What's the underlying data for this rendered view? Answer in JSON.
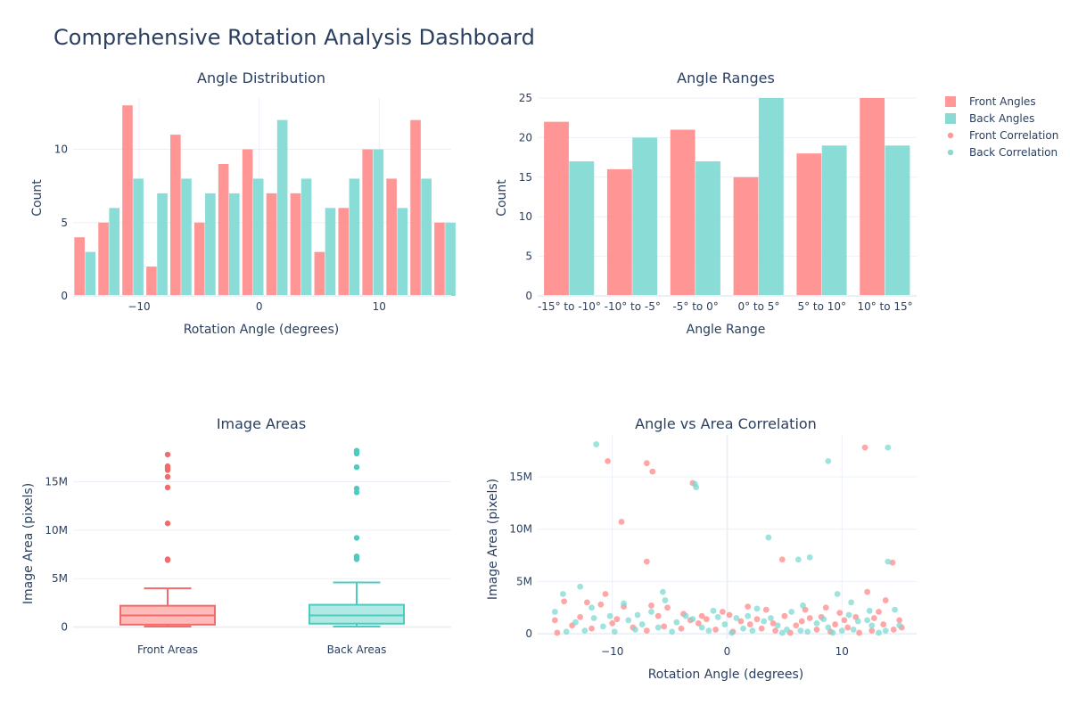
{
  "dashboard": {
    "title": "Comprehensive Rotation Analysis Dashboard"
  },
  "legend": {
    "items": [
      {
        "label": "Front Angles",
        "kind": "bar",
        "color": "#ff9896"
      },
      {
        "label": "Back Angles",
        "kind": "bar",
        "color": "#8ad9d2"
      },
      {
        "label": "Front Correlation",
        "kind": "dot",
        "color": "#ff9896"
      },
      {
        "label": "Back Correlation",
        "kind": "dot",
        "color": "#8ad9d2"
      }
    ]
  },
  "colors": {
    "front": "#ff8a8a",
    "back": "#7dd9d1",
    "front_dark": "#f26b6b",
    "back_dark": "#4ecbc1",
    "front_box_fill": "#ffb3b3",
    "back_box_fill": "#a8e8e2"
  },
  "chart_data": [
    {
      "id": "hist",
      "type": "bar",
      "title": "Angle Distribution",
      "xlabel": "Rotation Angle (degrees)",
      "ylabel": "Count",
      "xlim": [
        -15.5,
        16
      ],
      "ylim": [
        0,
        13.5
      ],
      "xticks": [
        {
          "v": -10,
          "t": "−10"
        },
        {
          "v": 0,
          "t": "0"
        },
        {
          "v": 10,
          "t": "10"
        }
      ],
      "yticks": [
        {
          "v": 0,
          "t": "0"
        },
        {
          "v": 5,
          "t": "5"
        },
        {
          "v": 10,
          "t": "10"
        }
      ],
      "bin_centers": [
        -14.5,
        -12.5,
        -10.5,
        -8.5,
        -6.5,
        -4.5,
        -2.5,
        -0.5,
        1.5,
        3.5,
        5.5,
        7.5,
        9.5,
        11.5,
        13.5,
        15.5
      ],
      "series": [
        {
          "name": "Front Angles",
          "values": [
            4,
            5,
            13,
            2,
            11,
            5,
            9,
            10,
            7,
            7,
            3,
            6,
            10,
            8,
            12,
            5
          ]
        },
        {
          "name": "Back Angles",
          "values": [
            3,
            6,
            8,
            7,
            8,
            7,
            7,
            8,
            12,
            8,
            6,
            8,
            10,
            6,
            8,
            5
          ]
        }
      ]
    },
    {
      "id": "ranges",
      "type": "bar",
      "title": "Angle Ranges",
      "xlabel": "Angle Range",
      "ylabel": "Count",
      "ylim": [
        0,
        25
      ],
      "yticks": [
        {
          "v": 0,
          "t": "0"
        },
        {
          "v": 5,
          "t": "5"
        },
        {
          "v": 10,
          "t": "10"
        },
        {
          "v": 15,
          "t": "15"
        },
        {
          "v": 20,
          "t": "20"
        },
        {
          "v": 25,
          "t": "25"
        }
      ],
      "categories": [
        "-15° to -10°",
        "-10° to -5°",
        "-5° to 0°",
        "0° to 5°",
        "5° to 10°",
        "10° to 15°"
      ],
      "series": [
        {
          "name": "Front Angles",
          "values": [
            22,
            16,
            21,
            15,
            18,
            25
          ]
        },
        {
          "name": "Back Angles",
          "values": [
            17,
            20,
            17,
            25,
            19,
            19
          ]
        }
      ]
    },
    {
      "id": "box",
      "type": "box",
      "title": "Image Areas",
      "xlabel": "",
      "ylabel": "Image Area (pixels)",
      "ylim": [
        -500000,
        19000000
      ],
      "yticks": [
        {
          "v": 0,
          "t": "0"
        },
        {
          "v": 5000000,
          "t": "5M"
        },
        {
          "v": 10000000,
          "t": "10M"
        },
        {
          "v": 15000000,
          "t": "15M"
        }
      ],
      "categories": [
        "Front Areas",
        "Back Areas"
      ],
      "boxes": [
        {
          "name": "Front Areas",
          "min": 50000,
          "q1": 250000,
          "median": 1200000,
          "q3": 2200000,
          "whisker_high": 4000000,
          "outliers": [
            6900000,
            7000000,
            10700000,
            14400000,
            15500000,
            16200000,
            16400000,
            16600000,
            17800000
          ]
        },
        {
          "name": "Back Areas",
          "min": 50000,
          "q1": 350000,
          "median": 1200000,
          "q3": 2300000,
          "whisker_high": 4600000,
          "outliers": [
            7000000,
            7200000,
            7300000,
            9200000,
            13900000,
            14300000,
            16500000,
            17900000,
            18100000,
            18200000
          ]
        }
      ]
    },
    {
      "id": "scatter",
      "type": "scatter",
      "title": "Angle vs Area Correlation",
      "xlabel": "Rotation Angle (degrees)",
      "ylabel": "Image Area (pixels)",
      "xlim": [
        -16.5,
        16.5
      ],
      "ylim": [
        -500000,
        19000000
      ],
      "xticks": [
        {
          "v": -10,
          "t": "−10"
        },
        {
          "v": 0,
          "t": "0"
        },
        {
          "v": 10,
          "t": "10"
        }
      ],
      "yticks": [
        {
          "v": 0,
          "t": "0"
        },
        {
          "v": 5000000,
          "t": "5M"
        },
        {
          "v": 10000000,
          "t": "10M"
        },
        {
          "v": 15000000,
          "t": "15M"
        }
      ],
      "series": [
        {
          "name": "Front Correlation",
          "points": [
            [
              -10.4,
              16500000
            ],
            [
              -7.0,
              16300000
            ],
            [
              -6.5,
              15500000
            ],
            [
              -3.0,
              14400000
            ],
            [
              -9.2,
              10700000
            ],
            [
              -7.0,
              6900000
            ],
            [
              4.8,
              7100000
            ],
            [
              12.0,
              17800000
            ],
            [
              14.4,
              6800000
            ],
            [
              12.2,
              4000000
            ],
            [
              13.8,
              3200000
            ],
            [
              -10.6,
              3800000
            ],
            [
              -14.2,
              3100000
            ],
            [
              -12.2,
              3000000
            ],
            [
              -11.0,
              2800000
            ],
            [
              -9.0,
              2600000
            ],
            [
              -6.6,
              2700000
            ],
            [
              -5.2,
              2500000
            ],
            [
              -3.8,
              1900000
            ],
            [
              -2.2,
              1700000
            ],
            [
              -0.4,
              2100000
            ],
            [
              1.8,
              2600000
            ],
            [
              3.4,
              2300000
            ],
            [
              5.0,
              1700000
            ],
            [
              6.8,
              2300000
            ],
            [
              8.6,
              2500000
            ],
            [
              9.8,
              2000000
            ],
            [
              11.2,
              1600000
            ],
            [
              13.2,
              2100000
            ],
            [
              15.0,
              1300000
            ],
            [
              -15.0,
              1300000
            ],
            [
              -13.5,
              800000
            ],
            [
              -11.8,
              500000
            ],
            [
              -10.0,
              1000000
            ],
            [
              -8.2,
              600000
            ],
            [
              -7.0,
              300000
            ],
            [
              -5.5,
              700000
            ],
            [
              -4.0,
              500000
            ],
            [
              -2.5,
              1000000
            ],
            [
              -1.0,
              400000
            ],
            [
              0.5,
              200000
            ],
            [
              2.0,
              900000
            ],
            [
              3.0,
              500000
            ],
            [
              4.2,
              300000
            ],
            [
              5.5,
              100000
            ],
            [
              6.5,
              1200000
            ],
            [
              7.8,
              400000
            ],
            [
              9.0,
              200000
            ],
            [
              10.5,
              600000
            ],
            [
              11.5,
              100000
            ],
            [
              12.6,
              300000
            ],
            [
              13.6,
              900000
            ],
            [
              14.5,
              400000
            ],
            [
              -14.8,
              100000
            ],
            [
              -12.8,
              1600000
            ],
            [
              -9.6,
              1400000
            ],
            [
              -6.0,
              1700000
            ],
            [
              -3.2,
              1300000
            ],
            [
              1.2,
              1200000
            ],
            [
              2.6,
              1400000
            ],
            [
              8.2,
              1600000
            ],
            [
              10.2,
              1300000
            ],
            [
              12.8,
              1500000
            ],
            [
              15.2,
              600000
            ],
            [
              -1.8,
              1400000
            ],
            [
              0.2,
              1800000
            ],
            [
              4.0,
              1000000
            ],
            [
              6.0,
              800000
            ],
            [
              7.2,
              1500000
            ],
            [
              9.4,
              900000
            ]
          ]
        },
        {
          "name": "Back Correlation",
          "points": [
            [
              -11.4,
              18100000
            ],
            [
              -2.8,
              14300000
            ],
            [
              -2.7,
              14000000
            ],
            [
              8.8,
              16500000
            ],
            [
              14.0,
              17800000
            ],
            [
              3.6,
              9200000
            ],
            [
              6.2,
              7100000
            ],
            [
              7.2,
              7300000
            ],
            [
              14.0,
              6900000
            ],
            [
              -14.3,
              3800000
            ],
            [
              -12.8,
              4500000
            ],
            [
              -5.6,
              4000000
            ],
            [
              -5.4,
              3200000
            ],
            [
              -9.0,
              2900000
            ],
            [
              -11.8,
              2500000
            ],
            [
              -6.6,
              2100000
            ],
            [
              -3.6,
              1700000
            ],
            [
              -1.2,
              2200000
            ],
            [
              0.8,
              1500000
            ],
            [
              2.6,
              2400000
            ],
            [
              5.6,
              2100000
            ],
            [
              6.6,
              2700000
            ],
            [
              9.6,
              3800000
            ],
            [
              10.8,
              3000000
            ],
            [
              12.4,
              2200000
            ],
            [
              14.6,
              2300000
            ],
            [
              -15.0,
              2100000
            ],
            [
              -13.2,
              1100000
            ],
            [
              -10.8,
              700000
            ],
            [
              -8.6,
              1300000
            ],
            [
              -7.4,
              900000
            ],
            [
              -6.0,
              600000
            ],
            [
              -4.4,
              1100000
            ],
            [
              -2.2,
              600000
            ],
            [
              -0.2,
              900000
            ],
            [
              1.4,
              500000
            ],
            [
              3.2,
              1200000
            ],
            [
              4.4,
              800000
            ],
            [
              5.2,
              400000
            ],
            [
              6.4,
              300000
            ],
            [
              7.8,
              1000000
            ],
            [
              8.8,
              600000
            ],
            [
              10.0,
              300000
            ],
            [
              11.4,
              1200000
            ],
            [
              12.6,
              800000
            ],
            [
              13.8,
              300000
            ],
            [
              15.0,
              800000
            ],
            [
              -14.0,
              200000
            ],
            [
              -12.4,
              300000
            ],
            [
              -9.8,
              200000
            ],
            [
              -8.0,
              400000
            ],
            [
              -4.8,
              200000
            ],
            [
              -1.6,
              300000
            ],
            [
              0.4,
              100000
            ],
            [
              2.2,
              300000
            ],
            [
              4.8,
              100000
            ],
            [
              7.0,
              200000
            ],
            [
              9.2,
              100000
            ],
            [
              11.0,
              400000
            ],
            [
              13.2,
              100000
            ],
            [
              -10.2,
              1700000
            ],
            [
              -7.8,
              1800000
            ],
            [
              -3.0,
              1400000
            ],
            [
              1.8,
              1700000
            ],
            [
              3.8,
              1500000
            ],
            [
              8.4,
              1400000
            ],
            [
              10.6,
              1800000
            ],
            [
              12.2,
              1300000
            ],
            [
              -11.6,
              1500000
            ],
            [
              -0.8,
              1600000
            ]
          ]
        }
      ]
    }
  ]
}
